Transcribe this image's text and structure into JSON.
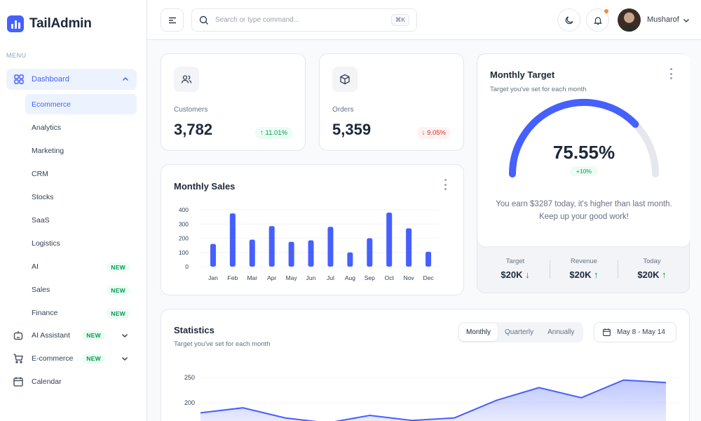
{
  "brand": {
    "name": "TailAdmin",
    "accent": "#465FFF"
  },
  "sidebar": {
    "menu_label": "MENU",
    "dashboard_label": "Dashboard",
    "sub_items": [
      {
        "label": "Ecommerce",
        "active": true
      },
      {
        "label": "Analytics"
      },
      {
        "label": "Marketing"
      },
      {
        "label": "CRM"
      },
      {
        "label": "Stocks"
      },
      {
        "label": "SaaS"
      },
      {
        "label": "Logistics"
      },
      {
        "label": "AI",
        "badge": "NEW"
      },
      {
        "label": "Sales",
        "badge": "NEW"
      },
      {
        "label": "Finance",
        "badge": "NEW"
      }
    ],
    "items": [
      {
        "label": "AI Assistant",
        "badge": "NEW",
        "icon": "robot-icon"
      },
      {
        "label": "E-commerce",
        "badge": "NEW",
        "icon": "cart-icon"
      },
      {
        "label": "Calendar",
        "icon": "calendar-icon"
      }
    ]
  },
  "header": {
    "search_placeholder": "Search or type command...",
    "shortcut": "⌘K",
    "user_name": "Musharof"
  },
  "metrics": [
    {
      "label": "Customers",
      "value": "3,782",
      "change": "11.01%",
      "trend": "up",
      "icon": "users-icon"
    },
    {
      "label": "Orders",
      "value": "5,359",
      "change": "9.05%",
      "trend": "down",
      "icon": "box-icon"
    }
  ],
  "monthly_sales": {
    "title": "Monthly Sales",
    "chart_data": {
      "type": "bar",
      "categories": [
        "Jan",
        "Feb",
        "Mar",
        "Apr",
        "May",
        "Jun",
        "Jul",
        "Aug",
        "Sep",
        "Oct",
        "Nov",
        "Dec"
      ],
      "values": [
        160,
        375,
        190,
        285,
        175,
        185,
        280,
        100,
        200,
        380,
        270,
        105
      ],
      "yticks": [
        "400",
        "300",
        "200",
        "100",
        "0"
      ],
      "ylim": [
        0,
        400
      ],
      "color": "#465FFF"
    }
  },
  "monthly_target": {
    "title": "Monthly Target",
    "subtitle": "Target you've set for each month",
    "percent_label": "75.55%",
    "percent": 75.55,
    "change": "+10%",
    "message": "You earn $3287 today, it's higher than last month. Keep up your good work!",
    "stats": [
      {
        "label": "Target",
        "value": "$20K",
        "trend": "down"
      },
      {
        "label": "Revenue",
        "value": "$20K",
        "trend": "up"
      },
      {
        "label": "Today",
        "value": "$20K",
        "trend": "up"
      }
    ]
  },
  "statistics": {
    "title": "Statistics",
    "subtitle": "Target you've set for each month",
    "tabs": [
      "Monthly",
      "Quarterly",
      "Annually"
    ],
    "active_tab": "Monthly",
    "date_range": "May 8 - May 14",
    "chart_data": {
      "type": "area",
      "yticks": [
        "250",
        "200"
      ],
      "values": [
        180,
        190,
        170,
        160,
        175,
        165,
        170,
        205,
        230,
        210,
        245,
        240
      ]
    }
  }
}
